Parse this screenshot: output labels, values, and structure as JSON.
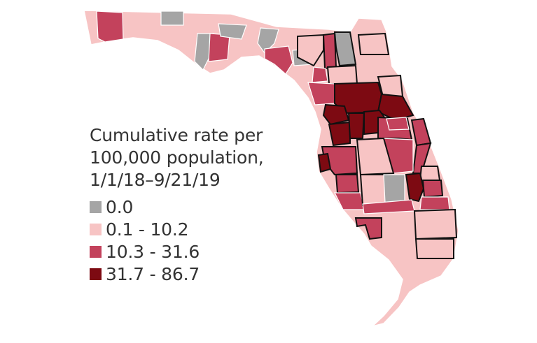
{
  "legend": {
    "title": "Cumulative rate per\n100,000 population,\n1/1/18–9/21/19",
    "items": [
      {
        "label": "0.0",
        "color": "#a5a5a5"
      },
      {
        "label": "0.1 - 10.2",
        "color": "#f7c4c4"
      },
      {
        "label": "10.3 - 31.6",
        "color": "#c3425c"
      },
      {
        "label": "31.7 - 86.7",
        "color": "#7d0a12"
      }
    ]
  },
  "colors": {
    "zero": "#a5a5a5",
    "low": "#f7c4c4",
    "mid": "#c3425c",
    "high": "#7d0a12",
    "county_border": "#ffffff",
    "highlight_border": "#111111"
  }
}
